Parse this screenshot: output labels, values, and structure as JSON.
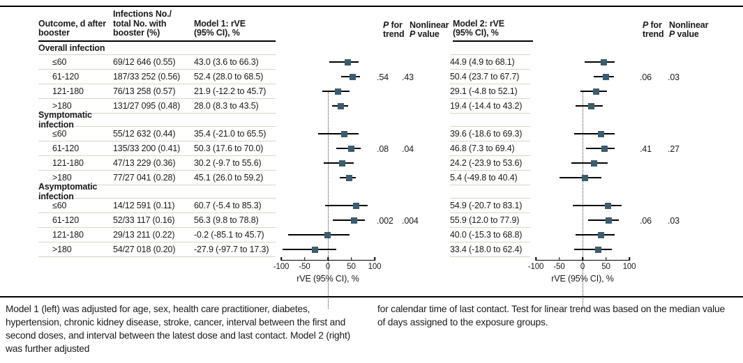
{
  "header": {
    "outcome_lines": [
      "Outcome, d after",
      "booster"
    ],
    "infections_lines": [
      "Infections No./",
      "total No. with",
      "booster (%)"
    ],
    "model1_lines": [
      "Model 1: rVE",
      "(95% CI), %"
    ],
    "model2_lines": [
      "Model 2: rVE",
      "(95% CI), %"
    ],
    "p_for_trend": {
      "p": "P",
      "line1_rest": "for",
      "line2": "trend"
    },
    "nonlinear": {
      "line1": "Nonlinear",
      "p": "P",
      "line2_rest": "value"
    }
  },
  "sections": [
    {
      "label": "Overall infection",
      "model1_p_trend": ".54",
      "model1_nonlinear_p": ".43",
      "model2_p_trend": ".06",
      "model2_nonlinear_p": ".03",
      "rows": [
        {
          "outcome": "≤60",
          "infections": "69/12 646 (0.55)",
          "model1": "43.0 (3.6 to 66.3)",
          "model2": "44.9 (4.9 to 68.1)"
        },
        {
          "outcome": "61-120",
          "infections": "187/33 252 (0.56)",
          "model1": "52.4 (28.0 to 68.5)",
          "model2": "50.4 (23.7 to 67.7)"
        },
        {
          "outcome": "121-180",
          "infections": "76/13 258 (0.57)",
          "model1": "21.9 (-12.2 to 45.7)",
          "model2": "29.1 (-4.8 to 52.1)"
        },
        {
          "outcome": ">180",
          "infections": "131/27 095 (0.48)",
          "model1": "28.0 (8.3 to 43.5)",
          "model2": "19.4 (-14.4 to 43.2)"
        }
      ]
    },
    {
      "label": "Symptomatic infection",
      "model1_p_trend": ".08",
      "model1_nonlinear_p": ".04",
      "model2_p_trend": ".41",
      "model2_nonlinear_p": ".27",
      "rows": [
        {
          "outcome": "≤60",
          "infections": "55/12 632 (0.44)",
          "model1": "35.4 (-21.0 to 65.5)",
          "model2": "39.6 (-18.6 to 69.3)"
        },
        {
          "outcome": "61-120",
          "infections": "135/33 200 (0.41)",
          "model1": "50.3 (17.6 to 70.0)",
          "model2": "46.8 (7.3 to 69.4)"
        },
        {
          "outcome": "121-180",
          "infections": "47/13 229 (0.36)",
          "model1": "30.2 (-9.7 to 55.6)",
          "model2": "24.2 (-23.9 to 53.6)"
        },
        {
          "outcome": ">180",
          "infections": "77/27 041 (0.28)",
          "model1": "45.1 (26.0 to 59.2)",
          "model2": "5.4 (-49.8 to 40.4)"
        }
      ]
    },
    {
      "label": "Asymptomatic infection",
      "model1_p_trend": ".002",
      "model1_nonlinear_p": ".004",
      "model2_p_trend": ".06",
      "model2_nonlinear_p": ".03",
      "rows": [
        {
          "outcome": "≤60",
          "infections": "14/12 591 (0.11)",
          "model1": "60.7 (-5.4 to 85.3)",
          "model2": "54.9 (-20.7 to 83.1)"
        },
        {
          "outcome": "61-120",
          "infections": "52/33 117 (0.16)",
          "model1": "56.3 (9.8 to 78.8)",
          "model2": "55.9 (12.0 to 77.9)"
        },
        {
          "outcome": "121-180",
          "infections": "29/13 211 (0.22)",
          "model1": "-0.2 (-85.1 to 45.7)",
          "model2": "40.0 (-15.3 to 68.8)"
        },
        {
          "outcome": ">180",
          "infections": "54/27 018 (0.20)",
          "model1": "-27.9 (-97.7 to 17.3)",
          "model2": "33.4 (-18.0 to 62.4)"
        }
      ]
    }
  ],
  "axis": {
    "ticks": [
      "-100",
      "-50",
      "0",
      "50",
      "100"
    ],
    "label": "rVE (95% CI), %"
  },
  "footnotes": {
    "left": "Model 1 (left) was adjusted for age, sex, health care practitioner, diabetes, hypertension, chronic kidney disease, stroke, cancer, interval between the first and second doses, and interval between the latest dose and last contact. Model 2 (right) was further adjusted",
    "right": "for calendar time of last contact. Test for linear trend was based on the median value of days assigned to the exposure groups."
  },
  "colors": {
    "marker": "#3c5d6d",
    "hairline": "#d8d3c6",
    "rule": "#000000"
  },
  "chart_data": [
    {
      "type": "scatter",
      "subtype": "forest-plot",
      "title": "Model 1: rVE (95% CI), %",
      "xlabel": "rVE (95% CI), %",
      "xlim": [
        -100,
        100
      ],
      "xticks": [
        -100,
        -50,
        0,
        50,
        100
      ],
      "reference_line": 0,
      "groups": [
        {
          "name": "Overall infection",
          "points": [
            {
              "label": "≤60",
              "est": 43.0,
              "lo": 3.6,
              "hi": 66.3
            },
            {
              "label": "61-120",
              "est": 52.4,
              "lo": 28.0,
              "hi": 68.5
            },
            {
              "label": "121-180",
              "est": 21.9,
              "lo": -12.2,
              "hi": 45.7
            },
            {
              "label": ">180",
              "est": 28.0,
              "lo": 8.3,
              "hi": 43.5
            }
          ]
        },
        {
          "name": "Symptomatic infection",
          "points": [
            {
              "label": "≤60",
              "est": 35.4,
              "lo": -21.0,
              "hi": 65.5
            },
            {
              "label": "61-120",
              "est": 50.3,
              "lo": 17.6,
              "hi": 70.0
            },
            {
              "label": "121-180",
              "est": 30.2,
              "lo": -9.7,
              "hi": 55.6
            },
            {
              "label": ">180",
              "est": 45.1,
              "lo": 26.0,
              "hi": 59.2
            }
          ]
        },
        {
          "name": "Asymptomatic infection",
          "points": [
            {
              "label": "≤60",
              "est": 60.7,
              "lo": -5.4,
              "hi": 85.3
            },
            {
              "label": "61-120",
              "est": 56.3,
              "lo": 9.8,
              "hi": 78.8
            },
            {
              "label": "121-180",
              "est": -0.2,
              "lo": -85.1,
              "hi": 45.7
            },
            {
              "label": ">180",
              "est": -27.9,
              "lo": -97.7,
              "hi": 17.3
            }
          ]
        }
      ]
    },
    {
      "type": "scatter",
      "subtype": "forest-plot",
      "title": "Model 2: rVE (95% CI), %",
      "xlabel": "rVE (95% CI), %",
      "xlim": [
        -100,
        100
      ],
      "xticks": [
        -100,
        -50,
        0,
        50,
        100
      ],
      "reference_line": 0,
      "groups": [
        {
          "name": "Overall infection",
          "points": [
            {
              "label": "≤60",
              "est": 44.9,
              "lo": 4.9,
              "hi": 68.1
            },
            {
              "label": "61-120",
              "est": 50.4,
              "lo": 23.7,
              "hi": 67.7
            },
            {
              "label": "121-180",
              "est": 29.1,
              "lo": -4.8,
              "hi": 52.1
            },
            {
              "label": ">180",
              "est": 19.4,
              "lo": -14.4,
              "hi": 43.2
            }
          ]
        },
        {
          "name": "Symptomatic infection",
          "points": [
            {
              "label": "≤60",
              "est": 39.6,
              "lo": -18.6,
              "hi": 69.3
            },
            {
              "label": "61-120",
              "est": 46.8,
              "lo": 7.3,
              "hi": 69.4
            },
            {
              "label": "121-180",
              "est": 24.2,
              "lo": -23.9,
              "hi": 53.6
            },
            {
              "label": ">180",
              "est": 5.4,
              "lo": -49.8,
              "hi": 40.4
            }
          ]
        },
        {
          "name": "Asymptomatic infection",
          "points": [
            {
              "label": "≤60",
              "est": 54.9,
              "lo": -20.7,
              "hi": 83.1
            },
            {
              "label": "61-120",
              "est": 55.9,
              "lo": 12.0,
              "hi": 77.9
            },
            {
              "label": "121-180",
              "est": 40.0,
              "lo": -15.3,
              "hi": 68.8
            },
            {
              "label": ">180",
              "est": 33.4,
              "lo": -18.0,
              "hi": 62.4
            }
          ]
        }
      ]
    }
  ]
}
